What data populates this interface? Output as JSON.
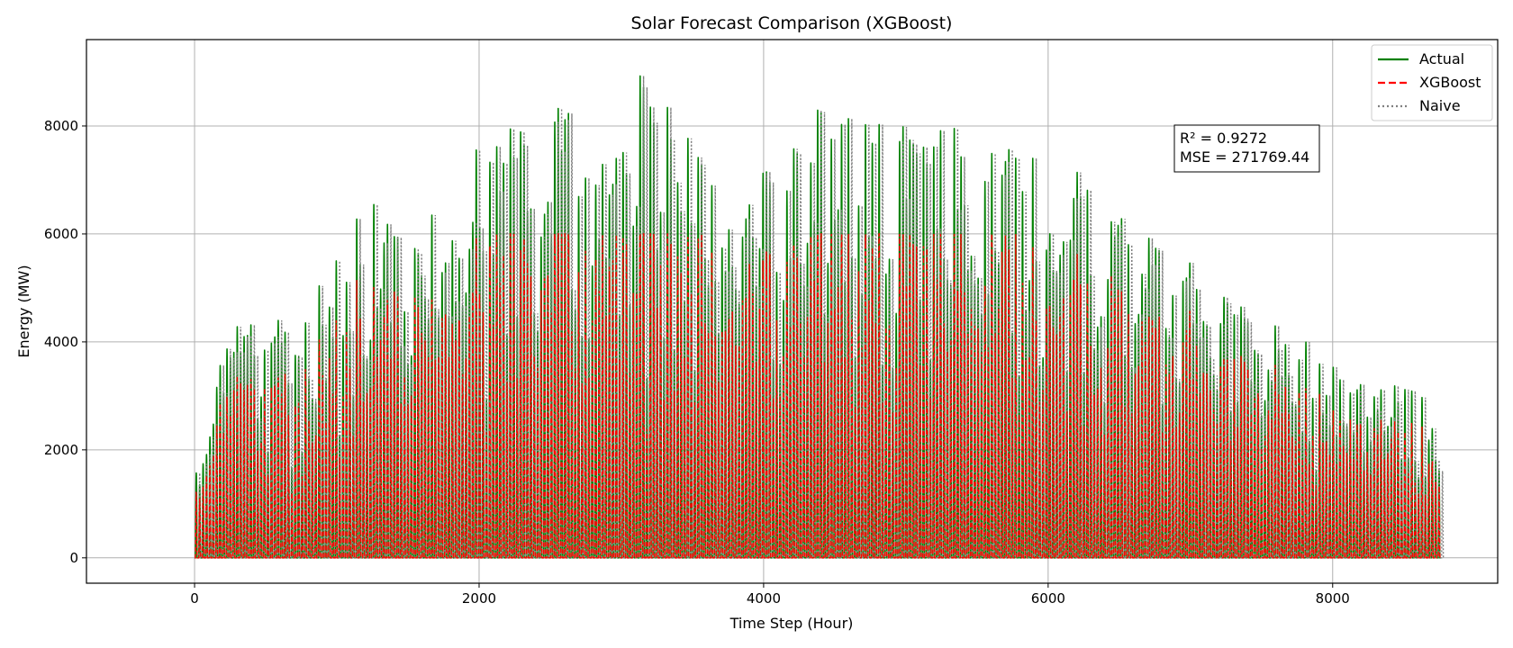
{
  "chart_data": {
    "type": "line",
    "title": "Solar Forecast Comparison (XGBoost)",
    "xlabel": "Time Step (Hour)",
    "ylabel": "Energy (MW)",
    "xlim": [
      -760,
      9160
    ],
    "ylim": [
      -470,
      9600
    ],
    "x_ticks": [
      0,
      2000,
      4000,
      6000,
      8000
    ],
    "y_ticks": [
      0,
      2000,
      4000,
      6000,
      8000
    ],
    "x_tick_labels": [
      "0",
      "2000",
      "4000",
      "6000",
      "8000"
    ],
    "y_tick_labels": [
      "0",
      "2000",
      "4000",
      "6000",
      "8000"
    ],
    "grid": true,
    "legend_position": "top-right",
    "series": [
      {
        "name": "Actual",
        "color": "#008000",
        "style": "solid"
      },
      {
        "name": "XGBoost",
        "color": "#ff0000",
        "style": "dashed"
      },
      {
        "name": "Naive",
        "color": "#808080",
        "style": "dotted"
      }
    ],
    "x_range": [
      0,
      8760
    ],
    "daily_peaks_actual_approx": [
      [
        0,
        1800
      ],
      [
        60,
        2000
      ],
      [
        150,
        3400
      ],
      [
        360,
        4700
      ],
      [
        620,
        4600
      ],
      [
        790,
        4500
      ],
      [
        1050,
        6300
      ],
      [
        1300,
        6800
      ],
      [
        1640,
        6800
      ],
      [
        1790,
        6000
      ],
      [
        2000,
        7800
      ],
      [
        2150,
        8000
      ],
      [
        2370,
        8300
      ],
      [
        2590,
        8600
      ],
      [
        2930,
        7100
      ],
      [
        3150,
        9100
      ],
      [
        3370,
        8200
      ],
      [
        3720,
        6900
      ],
      [
        4070,
        7600
      ],
      [
        4230,
        8900
      ],
      [
        4370,
        8300
      ],
      [
        4870,
        8200
      ],
      [
        5600,
        7900
      ],
      [
        6100,
        7400
      ],
      [
        6580,
        6400
      ],
      [
        7160,
        5700
      ],
      [
        7500,
        4300
      ],
      [
        7680,
        4300
      ],
      [
        7970,
        3700
      ],
      [
        8130,
        3400
      ],
      [
        8590,
        3100
      ],
      [
        8760,
        3100
      ]
    ],
    "annotations": [
      "R² = 0.9272",
      "MSE = 271769.44"
    ]
  },
  "metrics": {
    "r2_label": "R² = 0.9272",
    "mse_label": "MSE = 271769.44"
  },
  "legend": {
    "items": [
      "Actual",
      "XGBoost",
      "Naive"
    ]
  }
}
